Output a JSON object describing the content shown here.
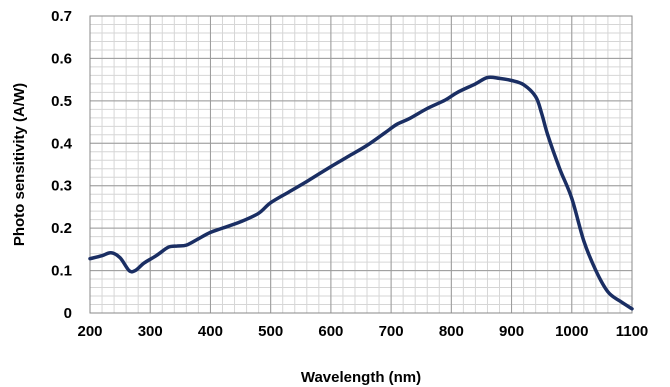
{
  "chart_data": {
    "type": "line",
    "title": "",
    "xlabel": "Wavelength  (nm)",
    "ylabel": "Photo sensitivity  (A/W)",
    "xlim": [
      200,
      1100
    ],
    "ylim": [
      0,
      0.7
    ],
    "x_ticks": [
      "200",
      "300",
      "400",
      "500",
      "600",
      "700",
      "800",
      "900",
      "1000",
      "1100"
    ],
    "y_ticks": [
      "0",
      "0.1",
      "0.2",
      "0.3",
      "0.4",
      "0.5",
      "0.6",
      "0.7"
    ],
    "grid": true,
    "minor_grid": true,
    "series": [
      {
        "color": "#1a2e63",
        "x": [
          200,
          220,
          235,
          250,
          265,
          275,
          290,
          310,
          330,
          345,
          360,
          380,
          400,
          420,
          450,
          480,
          500,
          530,
          560,
          600,
          630,
          660,
          690,
          710,
          730,
          760,
          790,
          810,
          840,
          860,
          880,
          900,
          920,
          940,
          950,
          960,
          980,
          1000,
          1020,
          1040,
          1060,
          1080,
          1100
        ],
        "y": [
          0.128,
          0.135,
          0.142,
          0.13,
          0.1,
          0.1,
          0.118,
          0.135,
          0.155,
          0.158,
          0.16,
          0.175,
          0.19,
          0.2,
          0.215,
          0.235,
          0.26,
          0.285,
          0.31,
          0.345,
          0.37,
          0.395,
          0.425,
          0.445,
          0.458,
          0.482,
          0.502,
          0.52,
          0.54,
          0.555,
          0.553,
          0.548,
          0.538,
          0.51,
          0.47,
          0.42,
          0.34,
          0.27,
          0.17,
          0.1,
          0.05,
          0.028,
          0.01
        ]
      }
    ]
  }
}
